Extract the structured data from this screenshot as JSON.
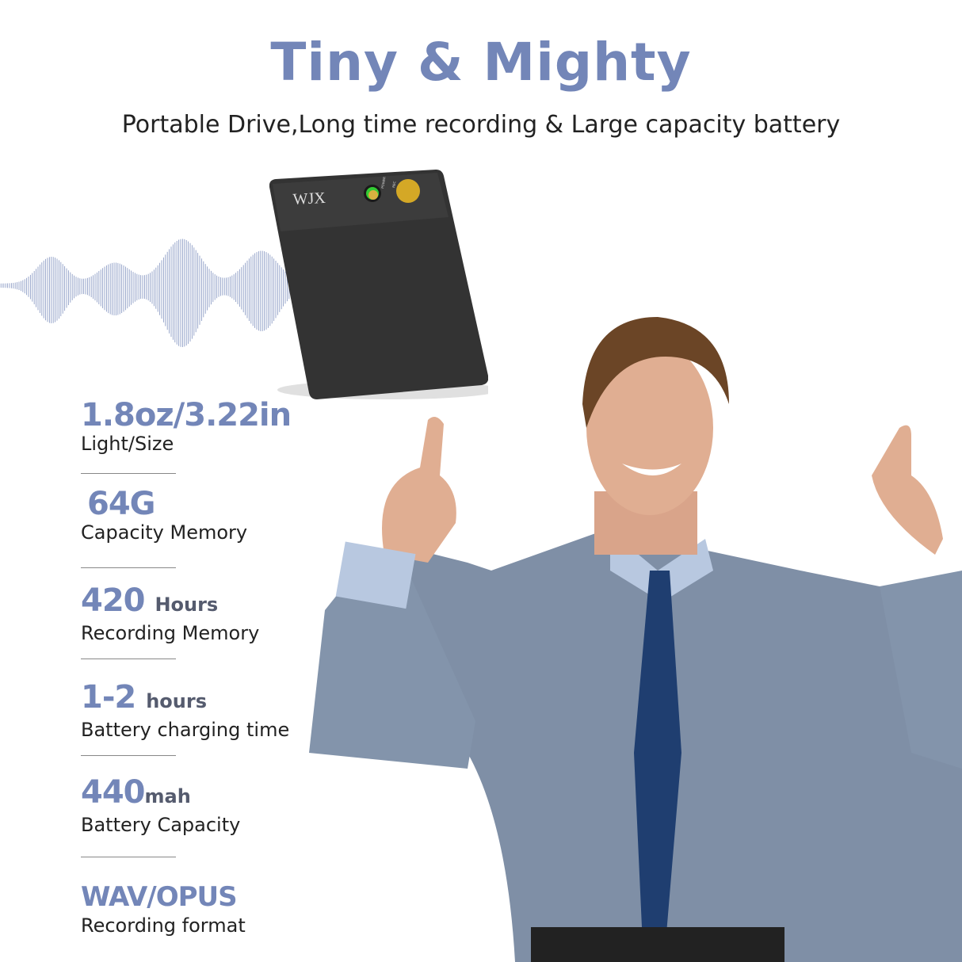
{
  "header": {
    "title": "Tiny & Mighty",
    "subtitle": "Portable Drive,Long time recording & Large capacity battery"
  },
  "device": {
    "brand": "WJX",
    "button_labels": [
      "POWER",
      "REC"
    ]
  },
  "accent_color": "#7386b8",
  "specs": [
    {
      "value": "1.8oz/3.22in",
      "unit": "",
      "label": "Light/Size"
    },
    {
      "value": "64G",
      "unit": "",
      "label": "Capacity Memory"
    },
    {
      "value": "420",
      "unit": "Hours",
      "label": "Recording Memory"
    },
    {
      "value": "1-2",
      "unit": "hours",
      "label": "Battery charging time"
    },
    {
      "value": "440",
      "unit": "mah",
      "label": "Battery Capacity"
    },
    {
      "value": "WAV/OPUS",
      "unit": "",
      "label": "Recording format"
    }
  ]
}
